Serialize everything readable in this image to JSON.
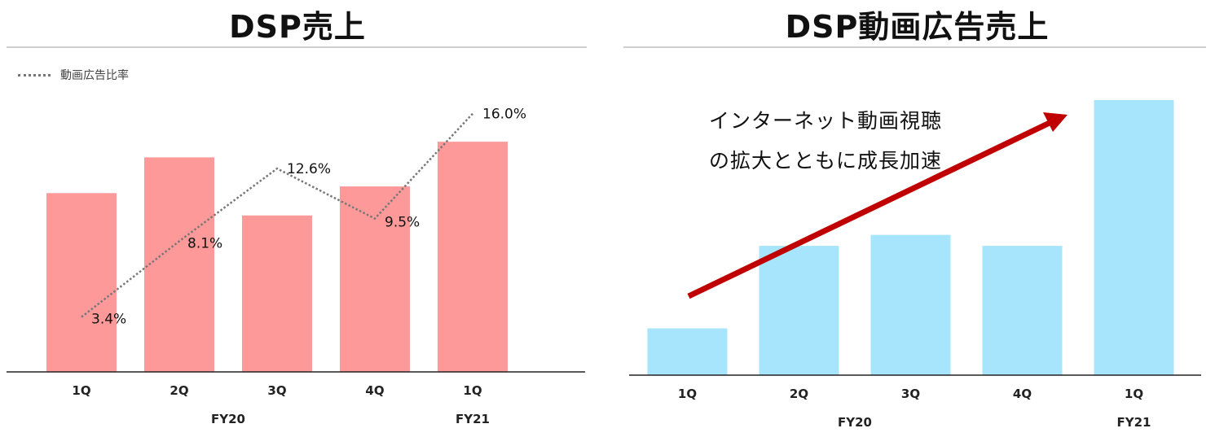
{
  "chart_data": [
    {
      "type": "bar",
      "title": "DSP売上",
      "categories": [
        "1Q",
        "2Q",
        "3Q",
        "4Q",
        "1Q"
      ],
      "groups": [
        {
          "label": "FY20",
          "categories": [
            "1Q",
            "2Q",
            "3Q",
            "4Q"
          ]
        },
        {
          "label": "FY21",
          "categories": [
            "1Q"
          ]
        }
      ],
      "values": [
        0.8,
        0.96,
        0.7,
        0.83,
        1.03
      ],
      "bar_color": "#fe9999",
      "ylim": [
        0,
        1.3
      ],
      "grid": false,
      "secondary_series": {
        "name": "動画広告比率",
        "type": "line",
        "style": "dotted",
        "color": "#777777",
        "values": [
          3.4,
          8.1,
          12.6,
          9.5,
          16.0
        ],
        "labels": [
          "3.4%",
          "8.1%",
          "12.6%",
          "9.5%",
          "16.0%"
        ],
        "ylim": [
          0,
          18
        ]
      },
      "legend": {
        "position": "top-left",
        "label": "動画広告比率"
      }
    },
    {
      "type": "bar",
      "title": "DSP動画広告売上",
      "categories": [
        "1Q",
        "2Q",
        "3Q",
        "4Q",
        "1Q"
      ],
      "groups": [
        {
          "label": "FY20",
          "categories": [
            "1Q",
            "2Q",
            "3Q",
            "4Q"
          ]
        },
        {
          "label": "FY21",
          "categories": [
            "1Q"
          ]
        }
      ],
      "values": [
        0.17,
        0.47,
        0.51,
        0.47,
        1.0
      ],
      "bar_color": "#a6e5fb",
      "ylim": [
        0,
        1.05
      ],
      "grid": false,
      "annotation": {
        "lines": [
          "インターネット動画視聴",
          "の拡大とともに成長加速"
        ],
        "arrow_color": "#c00000"
      }
    }
  ]
}
